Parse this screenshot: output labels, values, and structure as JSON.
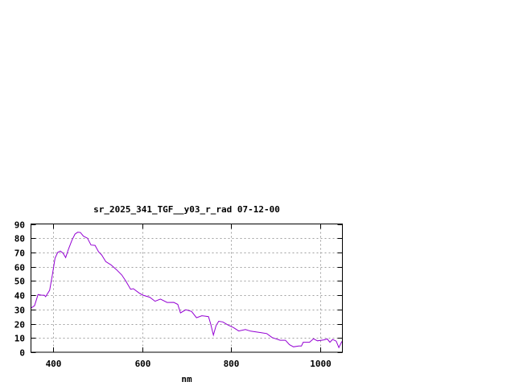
{
  "chart_data": {
    "type": "line",
    "title": "sr_2025_341_TGF__y03_r_rad 07-12-00",
    "xlabel": "nm",
    "ylabel": "",
    "xlim": [
      350,
      1050
    ],
    "ylim": [
      0,
      90
    ],
    "xticks": [
      400,
      600,
      800,
      1000
    ],
    "yticks": [
      0,
      10,
      20,
      30,
      40,
      50,
      60,
      70,
      80,
      90
    ],
    "grid": true,
    "line_color": "#9400d3",
    "series": [
      {
        "x": [
          350,
          358,
          366,
          374,
          380,
          383,
          392,
          398,
          404,
          410,
          416,
          422,
          428,
          434,
          442,
          449,
          455,
          461,
          468,
          477,
          485,
          494,
          502,
          509,
          518,
          530,
          542,
          554,
          563,
          574,
          580,
          593,
          602,
          617,
          629,
          641,
          656,
          671,
          680,
          686,
          698,
          711,
          722,
          734,
          749,
          754,
          760,
          766,
          772,
          781,
          793,
          805,
          817,
          832,
          844,
          868,
          880,
          892,
          910,
          922,
          931,
          940,
          952,
          958,
          962,
          976,
          985,
          994,
          1009,
          1016,
          1022,
          1028,
          1036,
          1042,
          1049
        ],
        "y": [
          31,
          32.6,
          40.5,
          40,
          40,
          39,
          43.5,
          54,
          66,
          70,
          71,
          69.6,
          66.4,
          72,
          78.6,
          82.9,
          84.2,
          84,
          81.4,
          80,
          75.2,
          75,
          70.5,
          68.2,
          63.6,
          61.3,
          58,
          54.2,
          50,
          44.2,
          44.6,
          41.6,
          40,
          38.6,
          35.8,
          37.3,
          34.9,
          35,
          33.6,
          27.6,
          29.8,
          28.6,
          24.2,
          25.6,
          25,
          19.7,
          12,
          18.7,
          21.7,
          21.3,
          19.1,
          17.3,
          14.9,
          15.9,
          14.8,
          13.7,
          13.1,
          10.3,
          8.4,
          8.4,
          5.3,
          3.8,
          4.4,
          4.4,
          7,
          7,
          9.4,
          8,
          8.7,
          9.3,
          7,
          9,
          7.8,
          3.3,
          7.6
        ]
      }
    ]
  }
}
